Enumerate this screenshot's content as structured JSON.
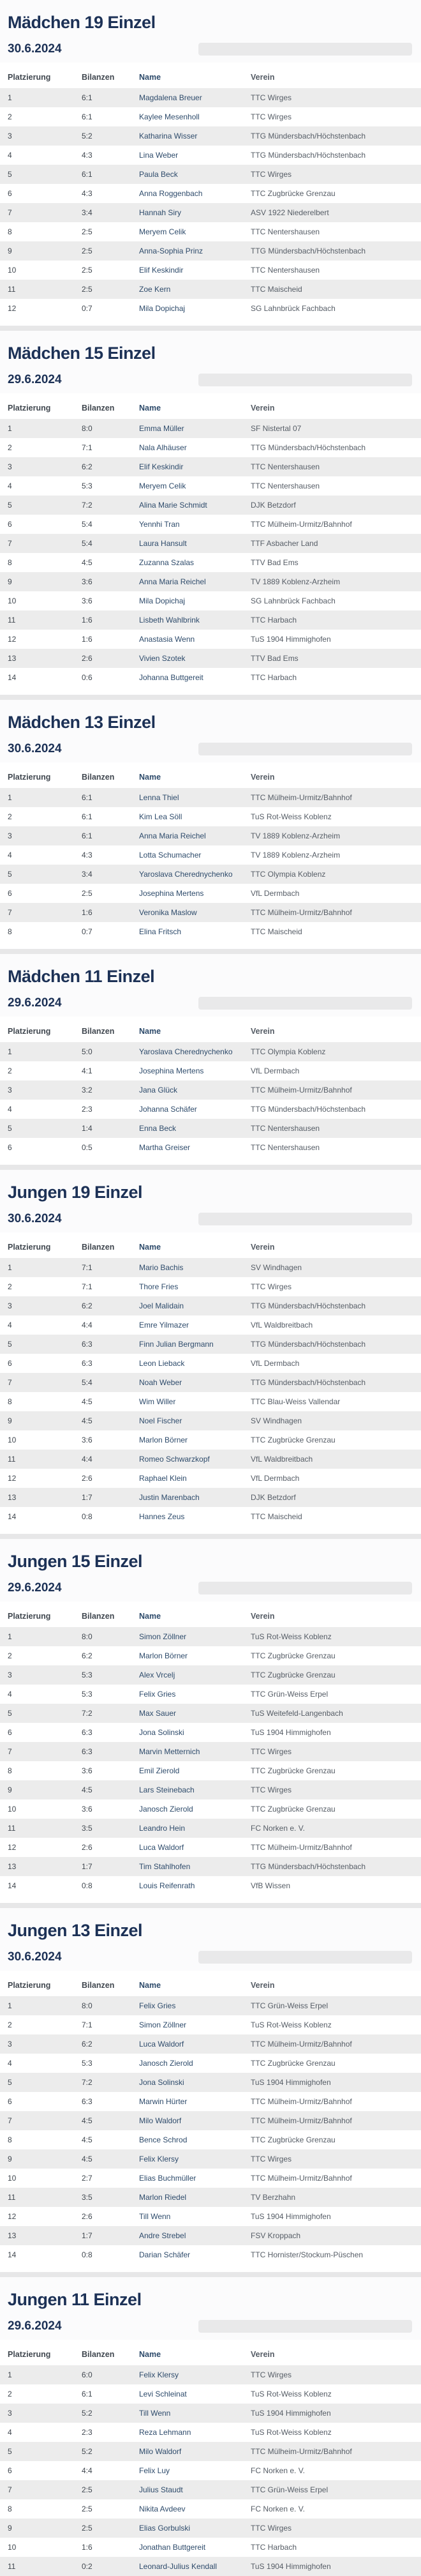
{
  "colors": {
    "heading": "#1c3156",
    "stripe": "#ececec",
    "name_text": "#2e4b6b",
    "verein_text": "#565d66",
    "divider": "#e7e7e8"
  },
  "columns": [
    "Platzierung",
    "Bilanzen",
    "Name",
    "Verein"
  ],
  "sections": [
    {
      "title": "Mädchen 19 Einzel",
      "date": "30.6.2024",
      "rows": [
        [
          "1",
          "6:1",
          "Magdalena Breuer",
          "TTC Wirges"
        ],
        [
          "2",
          "6:1",
          "Kaylee Mesenholl",
          "TTC Wirges"
        ],
        [
          "3",
          "5:2",
          "Katharina Wisser",
          "TTG Mündersbach/Höchstenbach"
        ],
        [
          "4",
          "4:3",
          "Lina Weber",
          "TTG Mündersbach/Höchstenbach"
        ],
        [
          "5",
          "6:1",
          "Paula Beck",
          "TTC Wirges"
        ],
        [
          "6",
          "4:3",
          "Anna Roggenbach",
          "TTC Zugbrücke Grenzau"
        ],
        [
          "7",
          "3:4",
          "Hannah Siry",
          "ASV 1922 Niederelbert"
        ],
        [
          "8",
          "2:5",
          "Meryem Celik",
          "TTC Nentershausen"
        ],
        [
          "9",
          "2:5",
          "Anna-Sophia Prinz",
          "TTG Mündersbach/Höchstenbach"
        ],
        [
          "10",
          "2:5",
          "Elif Keskindir",
          "TTC Nentershausen"
        ],
        [
          "11",
          "2:5",
          "Zoe Kern",
          "TTC Maischeid"
        ],
        [
          "12",
          "0:7",
          "Mila Dopichaj",
          "SG Lahnbrück Fachbach"
        ]
      ]
    },
    {
      "title": "Mädchen 15 Einzel",
      "date": "29.6.2024",
      "rows": [
        [
          "1",
          "8:0",
          "Emma Müller",
          "SF Nistertal 07"
        ],
        [
          "2",
          "7:1",
          "Nala Alhäuser",
          "TTG Mündersbach/Höchstenbach"
        ],
        [
          "3",
          "6:2",
          "Elif Keskindir",
          "TTC Nentershausen"
        ],
        [
          "4",
          "5:3",
          "Meryem Celik",
          "TTC Nentershausen"
        ],
        [
          "5",
          "7:2",
          "Alina Marie Schmidt",
          "DJK Betzdorf"
        ],
        [
          "6",
          "5:4",
          "Yennhi Tran",
          "TTC Mülheim-Urmitz/Bahnhof"
        ],
        [
          "7",
          "5:4",
          "Laura Hansult",
          "TTF Asbacher Land"
        ],
        [
          "8",
          "4:5",
          "Zuzanna Szalas",
          "TTV Bad Ems"
        ],
        [
          "9",
          "3:6",
          "Anna Maria Reichel",
          "TV 1889 Koblenz-Arzheim"
        ],
        [
          "10",
          "3:6",
          "Mila Dopichaj",
          "SG Lahnbrück Fachbach"
        ],
        [
          "11",
          "1:6",
          "Lisbeth Wahlbrink",
          "TTC Harbach"
        ],
        [
          "12",
          "1:6",
          "Anastasia Wenn",
          "TuS 1904 Himmighofen"
        ],
        [
          "13",
          "2:6",
          "Vivien Szotek",
          "TTV Bad Ems"
        ],
        [
          "14",
          "0:6",
          "Johanna Buttgereit",
          "TTC Harbach"
        ]
      ]
    },
    {
      "title": "Mädchen 13 Einzel",
      "date": "30.6.2024",
      "rows": [
        [
          "1",
          "6:1",
          "Lenna Thiel",
          "TTC Mülheim-Urmitz/Bahnhof"
        ],
        [
          "2",
          "6:1",
          "Kim Lea Söll",
          "TuS Rot-Weiss Koblenz"
        ],
        [
          "3",
          "6:1",
          "Anna Maria Reichel",
          "TV 1889 Koblenz-Arzheim"
        ],
        [
          "4",
          "4:3",
          "Lotta Schumacher",
          "TV 1889 Koblenz-Arzheim"
        ],
        [
          "5",
          "3:4",
          "Yaroslava Cherednychenko",
          "TTC Olympia Koblenz"
        ],
        [
          "6",
          "2:5",
          "Josephina Mertens",
          "VfL Dermbach"
        ],
        [
          "7",
          "1:6",
          "Veronika Maslow",
          "TTC Mülheim-Urmitz/Bahnhof"
        ],
        [
          "8",
          "0:7",
          "Elina Fritsch",
          "TTC Maischeid"
        ]
      ]
    },
    {
      "title": "Mädchen 11 Einzel",
      "date": "29.6.2024",
      "rows": [
        [
          "1",
          "5:0",
          "Yaroslava Cherednychenko",
          "TTC Olympia Koblenz"
        ],
        [
          "2",
          "4:1",
          "Josephina Mertens",
          "VfL Dermbach"
        ],
        [
          "3",
          "3:2",
          "Jana Glück",
          "TTC Mülheim-Urmitz/Bahnhof"
        ],
        [
          "4",
          "2:3",
          "Johanna Schäfer",
          "TTG Mündersbach/Höchstenbach"
        ],
        [
          "5",
          "1:4",
          "Enna Beck",
          "TTC Nentershausen"
        ],
        [
          "6",
          "0:5",
          "Martha Greiser",
          "TTC Nentershausen"
        ]
      ]
    },
    {
      "title": "Jungen 19 Einzel",
      "date": "30.6.2024",
      "rows": [
        [
          "1",
          "7:1",
          "Mario Bachis",
          "SV Windhagen"
        ],
        [
          "2",
          "7:1",
          "Thore Fries",
          "TTC Wirges"
        ],
        [
          "3",
          "6:2",
          "Joel Malidain",
          "TTG Mündersbach/Höchstenbach"
        ],
        [
          "4",
          "4:4",
          "Emre Yilmazer",
          "VfL Waldbreitbach"
        ],
        [
          "5",
          "6:3",
          "Finn Julian Bergmann",
          "TTG Mündersbach/Höchstenbach"
        ],
        [
          "6",
          "6:3",
          "Leon Lieback",
          "VfL Dermbach"
        ],
        [
          "7",
          "5:4",
          "Noah Weber",
          "TTG Mündersbach/Höchstenbach"
        ],
        [
          "8",
          "4:5",
          "Wim Willer",
          "TTC Blau-Weiss Vallendar"
        ],
        [
          "9",
          "4:5",
          "Noel Fischer",
          "SV Windhagen"
        ],
        [
          "10",
          "3:6",
          "Marlon Börner",
          "TTC Zugbrücke Grenzau"
        ],
        [
          "11",
          "4:4",
          "Romeo Schwarzkopf",
          "VfL Waldbreitbach"
        ],
        [
          "12",
          "2:6",
          "Raphael Klein",
          "VfL Dermbach"
        ],
        [
          "13",
          "1:7",
          "Justin Marenbach",
          "DJK Betzdorf"
        ],
        [
          "14",
          "0:8",
          "Hannes Zeus",
          "TTC Maischeid"
        ]
      ]
    },
    {
      "title": "Jungen 15 Einzel",
      "date": "29.6.2024",
      "rows": [
        [
          "1",
          "8:0",
          "Simon Zöllner",
          "TuS Rot-Weiss Koblenz"
        ],
        [
          "2",
          "6:2",
          "Marlon Börner",
          "TTC Zugbrücke Grenzau"
        ],
        [
          "3",
          "5:3",
          "Alex Vrcelj",
          "TTC Zugbrücke Grenzau"
        ],
        [
          "4",
          "5:3",
          "Felix Gries",
          "TTC Grün-Weiss Erpel"
        ],
        [
          "5",
          "7:2",
          "Max Sauer",
          "TuS Weitefeld-Langenbach"
        ],
        [
          "6",
          "6:3",
          "Jona Solinski",
          "TuS 1904 Himmighofen"
        ],
        [
          "7",
          "6:3",
          "Marvin Metternich",
          "TTC Wirges"
        ],
        [
          "8",
          "3:6",
          "Emil Zierold",
          "TTC Zugbrücke Grenzau"
        ],
        [
          "9",
          "4:5",
          "Lars Steinebach",
          "TTC Wirges"
        ],
        [
          "10",
          "3:6",
          "Janosch Zierold",
          "TTC Zugbrücke Grenzau"
        ],
        [
          "11",
          "3:5",
          "Leandro Hein",
          "FC Norken e. V."
        ],
        [
          "12",
          "2:6",
          "Luca Waldorf",
          "TTC Mülheim-Urmitz/Bahnhof"
        ],
        [
          "13",
          "1:7",
          "Tim Stahlhofen",
          "TTG Mündersbach/Höchstenbach"
        ],
        [
          "14",
          "0:8",
          "Louis Reifenrath",
          "VfB Wissen"
        ]
      ]
    },
    {
      "title": "Jungen 13 Einzel",
      "date": "30.6.2024",
      "rows": [
        [
          "1",
          "8:0",
          "Felix Gries",
          "TTC Grün-Weiss Erpel"
        ],
        [
          "2",
          "7:1",
          "Simon Zöllner",
          "TuS Rot-Weiss Koblenz"
        ],
        [
          "3",
          "6:2",
          "Luca Waldorf",
          "TTC Mülheim-Urmitz/Bahnhof"
        ],
        [
          "4",
          "5:3",
          "Janosch Zierold",
          "TTC Zugbrücke Grenzau"
        ],
        [
          "5",
          "7:2",
          "Jona Solinski",
          "TuS 1904 Himmighofen"
        ],
        [
          "6",
          "6:3",
          "Marwin Hürter",
          "TTC Mülheim-Urmitz/Bahnhof"
        ],
        [
          "7",
          "4:5",
          "Milo Waldorf",
          "TTC Mülheim-Urmitz/Bahnhof"
        ],
        [
          "8",
          "4:5",
          "Bence Schrod",
          "TTC Zugbrücke Grenzau"
        ],
        [
          "9",
          "4:5",
          "Felix Klersy",
          "TTC Wirges"
        ],
        [
          "10",
          "2:7",
          "Elias Buchmüller",
          "TTC Mülheim-Urmitz/Bahnhof"
        ],
        [
          "11",
          "3:5",
          "Marlon Riedel",
          "TV Berzhahn"
        ],
        [
          "12",
          "2:6",
          "Till Wenn",
          "TuS 1904 Himmighofen"
        ],
        [
          "13",
          "1:7",
          "Andre Strebel",
          "FSV Kroppach"
        ],
        [
          "14",
          "0:8",
          "Darian Schäfer",
          "TTC Hornister/Stockum-Püschen"
        ]
      ]
    },
    {
      "title": "Jungen 11 Einzel",
      "date": "29.6.2024",
      "rows": [
        [
          "1",
          "6:0",
          "Felix Klersy",
          "TTC Wirges"
        ],
        [
          "2",
          "6:1",
          "Levi Schleinat",
          "TuS Rot-Weiss Koblenz"
        ],
        [
          "3",
          "5:2",
          "Till Wenn",
          "TuS 1904 Himmighofen"
        ],
        [
          "4",
          "2:3",
          "Reza Lehmann",
          "TuS Rot-Weiss Koblenz"
        ],
        [
          "5",
          "5:2",
          "Milo Waldorf",
          "TTC Mülheim-Urmitz/Bahnhof"
        ],
        [
          "6",
          "4:4",
          "Felix Luy",
          "FC Norken e. V."
        ],
        [
          "7",
          "2:5",
          "Julius Staudt",
          "TTC Grün-Weiss Erpel"
        ],
        [
          "8",
          "2:5",
          "Nikita Avdeev",
          "FC Norken e. V."
        ],
        [
          "9",
          "2:5",
          "Elias Gorbulski",
          "TTC Wirges"
        ],
        [
          "10",
          "1:6",
          "Jonathan Buttgereit",
          "TTC Harbach"
        ],
        [
          "11",
          "0:2",
          "Leonard-Julius Kendall",
          "TuS 1904 Himmighofen"
        ]
      ]
    }
  ]
}
